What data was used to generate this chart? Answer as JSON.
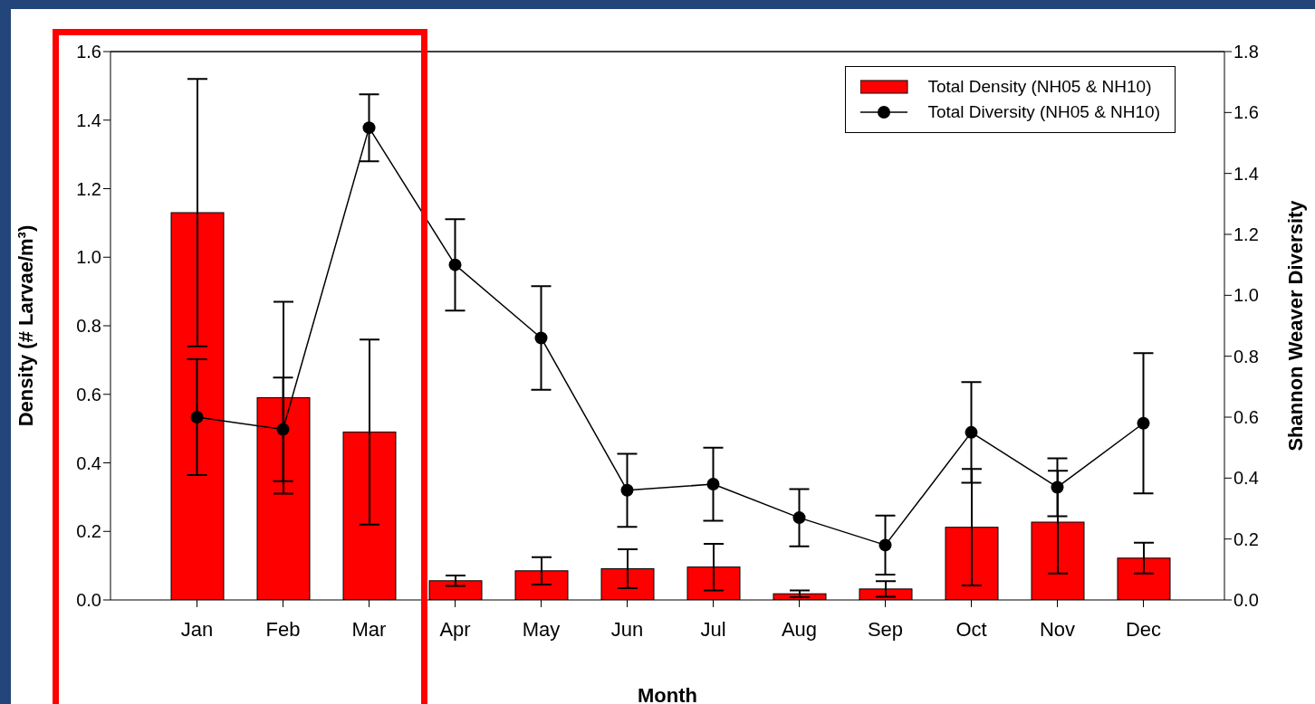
{
  "chart_data": {
    "type": "bar",
    "xlabel": "Month",
    "ylabel": "Density (# Larvae/m³)",
    "y2label": "Shannon Weaver Diversity",
    "categories": [
      "Jan",
      "Feb",
      "Mar",
      "Apr",
      "May",
      "Jun",
      "Jul",
      "Aug",
      "Sep",
      "Oct",
      "Nov",
      "Dec"
    ],
    "series": [
      {
        "name": "Total Density (NH05 & NH10)",
        "color": "#ff0000",
        "values": [
          1.13,
          0.59,
          0.49,
          0.056,
          0.085,
          0.091,
          0.096,
          0.018,
          0.032,
          0.212,
          0.227,
          0.122
        ],
        "errors": [
          0.39,
          0.28,
          0.27,
          0.015,
          0.04,
          0.057,
          0.068,
          0.01,
          0.023,
          0.17,
          0.15,
          0.045
        ]
      },
      {
        "name": "Total Diversity (NH05 & NH10)",
        "type": "line",
        "axis": "y2",
        "color": "#000000",
        "marker": "circle",
        "line_style": "solid",
        "values": [
          0.6,
          0.56,
          1.55,
          1.1,
          0.86,
          0.36,
          0.38,
          0.27,
          0.18,
          0.55,
          0.37,
          0.58
        ],
        "errors": [
          0.19,
          0.17,
          0.11,
          0.15,
          0.17,
          0.12,
          0.12,
          0.094,
          0.097,
          0.165,
          0.095,
          0.23
        ]
      }
    ],
    "ylim": [
      0,
      1.6
    ],
    "yticks": [
      {
        "value": 0,
        "label": "0.0"
      },
      0.2,
      0.4,
      0.6,
      0.8,
      {
        "value": 1,
        "label": "1.0"
      },
      1.2,
      1.4,
      1.6
    ],
    "y2lim": [
      0,
      1.8
    ],
    "y2ticks": [
      {
        "value": 0,
        "label": "0.0"
      },
      0.2,
      0.4,
      0.6,
      0.8,
      {
        "value": 1,
        "label": "1.0"
      },
      1.2,
      1.4,
      1.6,
      1.8
    ],
    "legend": "top right",
    "grid": false
  }
}
